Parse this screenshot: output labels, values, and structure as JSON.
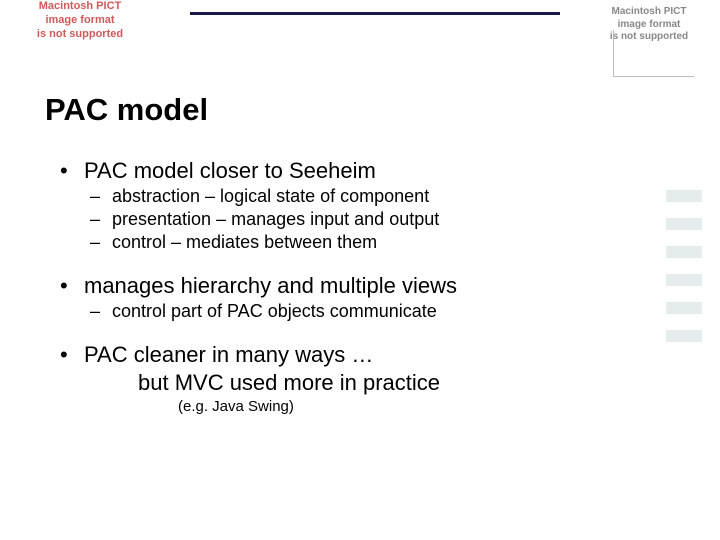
{
  "pict_placeholder": "Macintosh PICT\nimage format\nis not supported",
  "title": "PAC model",
  "bullets": {
    "b1": "PAC model closer to Seeheim",
    "b1_sub": [
      "abstraction – logical state of component",
      "presentation – manages input and output",
      "control – mediates between them"
    ],
    "b2": "manages hierarchy and multiple views",
    "b2_sub": [
      "control part of PAC objects communicate"
    ],
    "b3a": "PAC cleaner in many ways …",
    "b3b": "but MVC used more in practice",
    "b3_note": "(e.g. Java Swing)"
  },
  "style": {
    "title_fontsize": 31,
    "lvl1_fontsize": 22,
    "lvl2_fontsize": 18,
    "lvl3_fontsize": 15,
    "text_color": "#000000",
    "pict_color_red": "#d05a5a",
    "pict_color_gray": "#888888",
    "hr_color": "#1a1a4a",
    "background": "#ffffff"
  }
}
